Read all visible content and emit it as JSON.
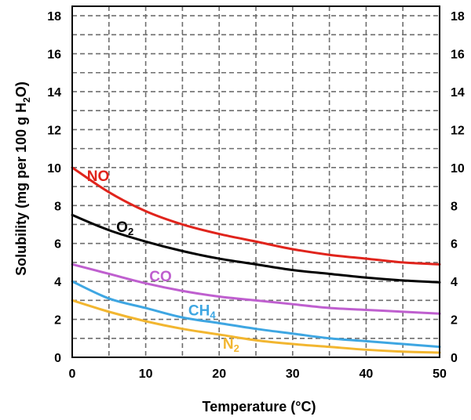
{
  "chart_data": {
    "type": "line",
    "xlabel": "Temperature (°C)",
    "ylabel": {
      "prefix": "Solubility (mg per 100 g H",
      "sub": "2",
      "suffix": "O)"
    },
    "xlim": [
      0,
      50
    ],
    "ylim": [
      0,
      18.5
    ],
    "xticks": [
      0,
      10,
      20,
      30,
      40,
      50
    ],
    "yticks": [
      0,
      2,
      4,
      6,
      8,
      10,
      12,
      14,
      16,
      18
    ],
    "grid": true,
    "grid_style": "dashed",
    "x": [
      0,
      5,
      10,
      15,
      20,
      25,
      30,
      35,
      40,
      45,
      50
    ],
    "series": [
      {
        "name": "NO",
        "label": {
          "main": "NO",
          "sub": "",
          "at": [
            2,
            9.3
          ]
        },
        "color": "#e0241c",
        "values": [
          10.0,
          8.7,
          7.7,
          7.0,
          6.5,
          6.1,
          5.7,
          5.4,
          5.2,
          5.0,
          4.9
        ]
      },
      {
        "name": "O2",
        "label": {
          "main": "O",
          "sub": "2",
          "at": [
            6,
            6.6
          ]
        },
        "color": "#000000",
        "values": [
          7.5,
          6.7,
          6.1,
          5.6,
          5.2,
          4.9,
          4.6,
          4.4,
          4.2,
          4.05,
          3.95
        ]
      },
      {
        "name": "CO",
        "label": {
          "main": "CO",
          "sub": "",
          "at": [
            10.5,
            4.0
          ]
        },
        "color": "#bf5fcf",
        "values": [
          4.9,
          4.4,
          3.9,
          3.5,
          3.2,
          3.0,
          2.8,
          2.6,
          2.5,
          2.4,
          2.3
        ]
      },
      {
        "name": "CH4",
        "label": {
          "main": "CH",
          "sub": "4",
          "at": [
            15.8,
            2.2
          ]
        },
        "color": "#3ea6e2",
        "values": [
          4.0,
          3.1,
          2.6,
          2.1,
          1.8,
          1.5,
          1.25,
          1.0,
          0.85,
          0.7,
          0.55
        ]
      },
      {
        "name": "N2",
        "label": {
          "main": "N",
          "sub": "2",
          "at": [
            20.5,
            0.45
          ]
        },
        "color": "#f2b630",
        "values": [
          3.0,
          2.4,
          1.9,
          1.5,
          1.2,
          0.9,
          0.7,
          0.55,
          0.4,
          0.3,
          0.25
        ]
      }
    ]
  }
}
